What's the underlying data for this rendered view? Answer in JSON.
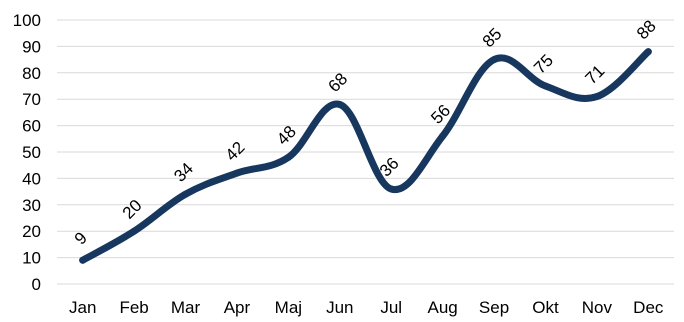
{
  "chart_data": {
    "type": "line",
    "categories": [
      "Jan",
      "Feb",
      "Mar",
      "Apr",
      "Maj",
      "Jun",
      "Jul",
      "Aug",
      "Sep",
      "Okt",
      "Nov",
      "Dec"
    ],
    "series": [
      {
        "values": [
          9,
          20,
          34,
          42,
          48,
          68,
          36,
          56,
          85,
          75,
          71,
          88
        ],
        "color": "#17375e",
        "smooth": true
      }
    ],
    "data_labels": [
      "9",
      "20",
      "34",
      "42",
      "48",
      "68",
      "36",
      "56",
      "85",
      "75",
      "71",
      "88"
    ],
    "y_ticks": [
      "0",
      "10",
      "20",
      "30",
      "40",
      "50",
      "60",
      "70",
      "80",
      "90",
      "100"
    ],
    "ylim": [
      0,
      100
    ],
    "title": "",
    "xlabel": "",
    "ylabel": "",
    "grid": true,
    "legend": "none"
  }
}
